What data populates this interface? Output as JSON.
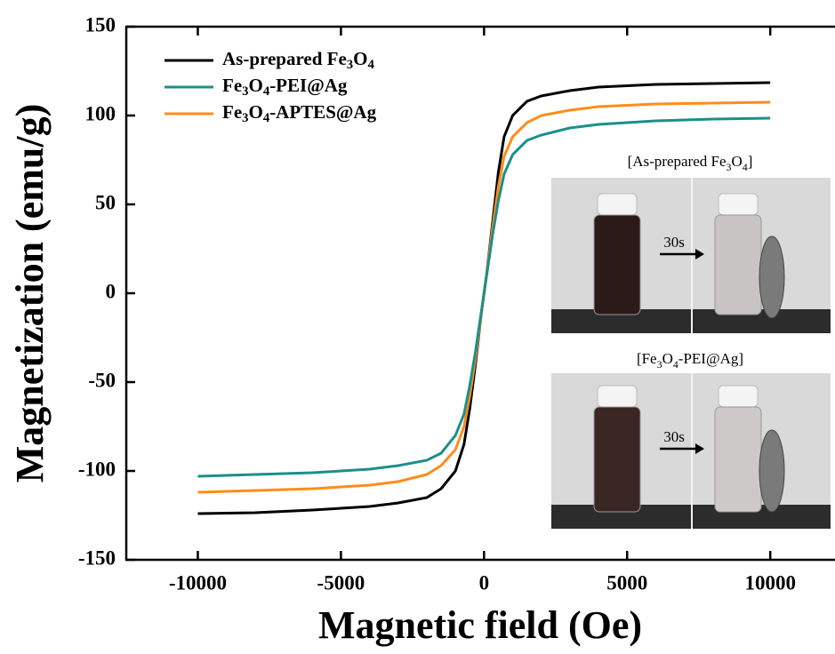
{
  "chart_data": {
    "type": "line",
    "x_label": "Magnetic field (Oe)",
    "y_label": "Magnetization (emu/g)",
    "x": [
      -10000,
      -8000,
      -6000,
      -4000,
      -3000,
      -2000,
      -1500,
      -1000,
      -700,
      -500,
      -300,
      -100,
      0,
      100,
      300,
      500,
      700,
      1000,
      1500,
      2000,
      3000,
      4000,
      6000,
      8000,
      10000
    ],
    "series": [
      {
        "name": "As-prepared Fe3O4",
        "color": "#000000",
        "values": [
          -124,
          -123.5,
          -122,
          -120,
          -118,
          -115,
          -110,
          -100,
          -85,
          -65,
          -40,
          -12,
          0,
          12,
          40,
          68,
          88,
          100,
          108,
          111,
          114,
          116,
          117.5,
          118,
          118.5
        ]
      },
      {
        "name": "Fe3O4-PEI@Ag",
        "color": "#1b8f8a",
        "values": [
          -103,
          -102,
          -101,
          -99,
          -97,
          -94,
          -90,
          -80,
          -68,
          -52,
          -33,
          -11,
          0,
          11,
          33,
          52,
          67,
          78,
          86,
          89,
          93,
          95,
          97,
          98,
          98.5
        ]
      },
      {
        "name": "Fe3O4-APTES@Ag",
        "color": "#ff8c1a",
        "values": [
          -112,
          -111,
          -110,
          -108,
          -106,
          -102,
          -97,
          -88,
          -75,
          -58,
          -37,
          -12,
          0,
          12,
          37,
          60,
          77,
          88,
          96,
          100,
          103,
          105,
          106.5,
          107,
          107.5
        ]
      }
    ],
    "xlim": [
      -12500,
      12200
    ],
    "ylim": [
      -150,
      150
    ],
    "xticks": [
      -10000,
      -5000,
      0,
      5000,
      10000
    ],
    "yticks": [
      -150,
      -100,
      -50,
      0,
      50,
      100,
      150
    ],
    "legend": "upper left",
    "insets": [
      {
        "label": "[As-prepared Fe3O4]",
        "annotation": "30s"
      },
      {
        "label": "[Fe3O4-PEI@Ag]",
        "annotation": "30s"
      }
    ]
  }
}
